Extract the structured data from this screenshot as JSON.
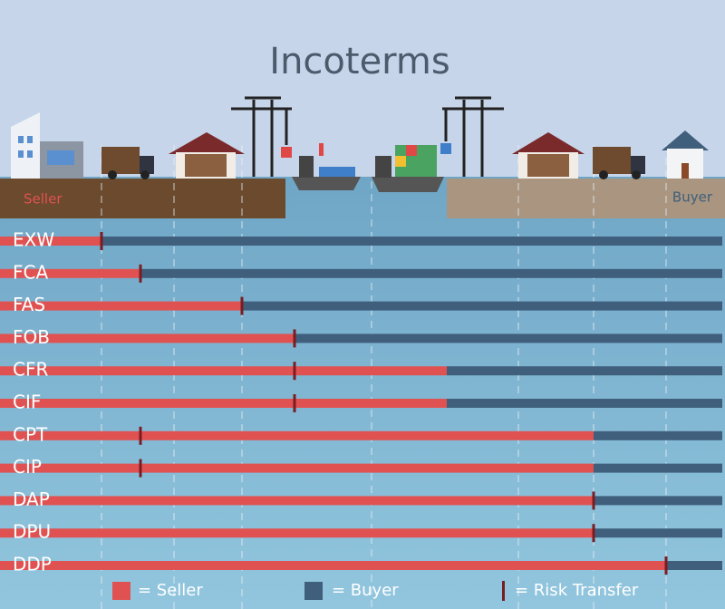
{
  "chart_data": {
    "type": "incoterms",
    "title": "Incoterms",
    "origin_label": "Seller",
    "destination_label": "Buyer",
    "categories": [
      "EXW",
      "FCA",
      "FAS",
      "FOB",
      "CFR",
      "CIF",
      "CPT",
      "CIP",
      "DAP",
      "DPU",
      "DDP"
    ],
    "xlim": [
      0,
      800
    ],
    "series": [
      {
        "name": "= Seller",
        "color": "#e05252",
        "values": [
          112,
          155,
          267,
          325,
          493,
          493,
          655,
          655,
          655,
          655,
          735
        ]
      },
      {
        "name": "= Buyer",
        "color": "#3f5f7c",
        "values": [
          685,
          642,
          530,
          472,
          304,
          304,
          142,
          142,
          142,
          142,
          62
        ]
      },
      {
        "name": "= Risk Transfer",
        "color": "#7a1c22",
        "values": [
          112,
          155,
          267,
          325,
          325,
          325,
          155,
          155,
          655,
          655,
          735
        ]
      }
    ]
  }
}
